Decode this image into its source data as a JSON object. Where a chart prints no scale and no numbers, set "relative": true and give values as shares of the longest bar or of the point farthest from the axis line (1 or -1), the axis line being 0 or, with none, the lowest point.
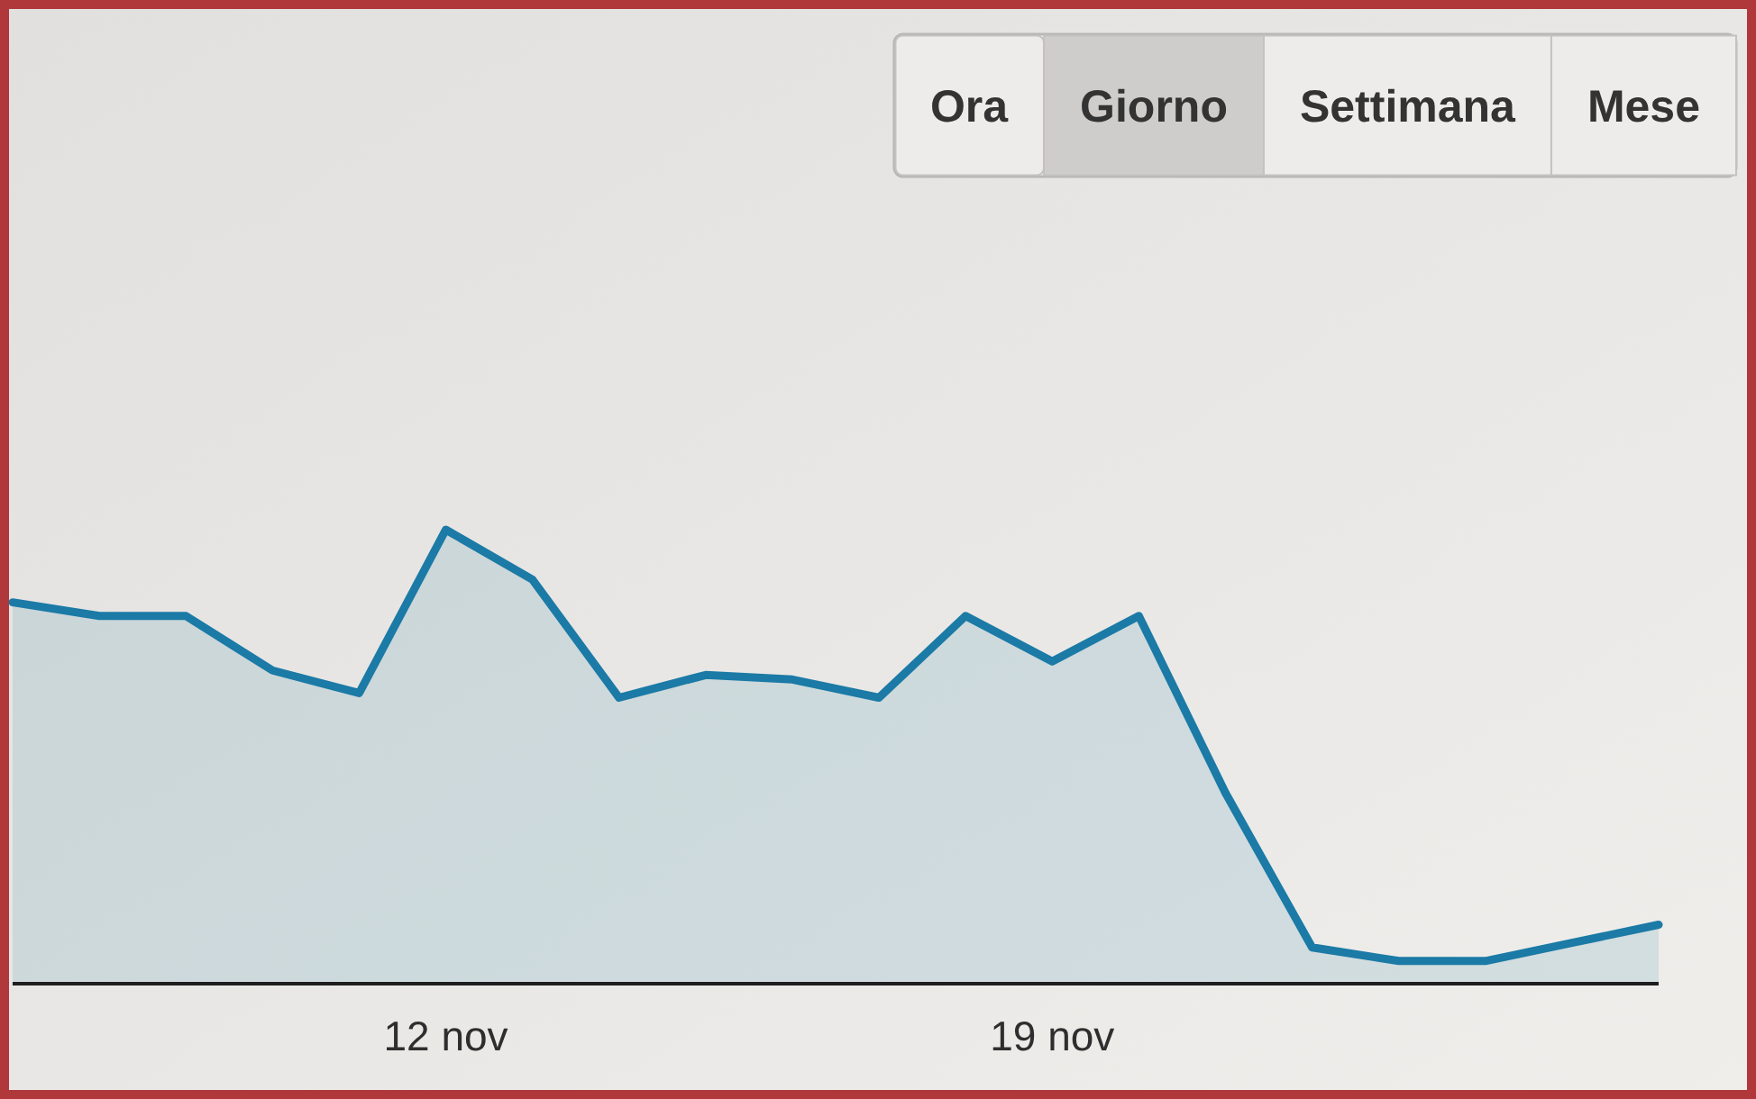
{
  "chart_data": {
    "type": "area",
    "relative": true,
    "x": [
      "--11-07",
      "--11-08",
      "--11-09",
      "--11-10",
      "--11-11",
      "--11-12",
      "--11-13",
      "--11-14",
      "--11-15",
      "--11-16",
      "--11-17",
      "--11-18",
      "--11-19",
      "--11-20",
      "--11-21",
      "--11-22",
      "--11-23",
      "--11-24",
      "--11-25",
      "--11-26"
    ],
    "values": [
      0.84,
      0.81,
      0.81,
      0.69,
      0.64,
      1,
      0.89,
      0.63,
      0.68,
      0.67,
      0.63,
      0.81,
      0.71,
      0.81,
      0.42,
      0.08,
      0.05,
      0.05,
      0.09,
      0.13
    ],
    "color": "#1b7aa6",
    "xlim": [
      "--11-07",
      "--11-26"
    ],
    "xticks": [
      {
        "value": "--11-12",
        "label": "12 nov"
      },
      {
        "value": "--11-19",
        "label": "19 nov"
      }
    ],
    "annotations": [
      "Ora",
      "Giorno",
      "Settimana",
      "Mese"
    ]
  }
}
